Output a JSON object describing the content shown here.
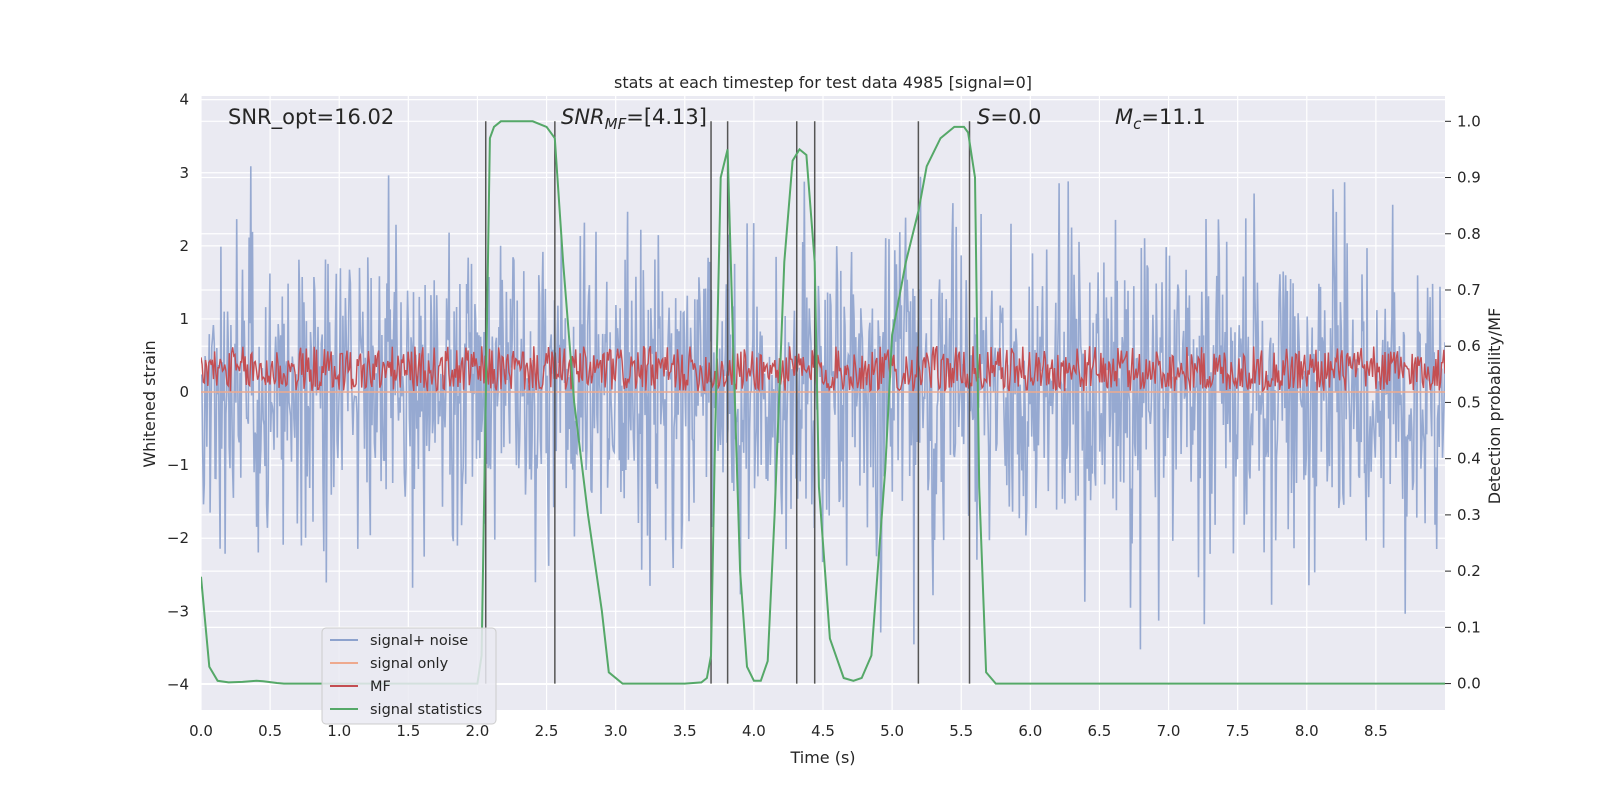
{
  "chart_data": {
    "type": "line",
    "title": "stats at each timestep for test data 4985 [signal=0]",
    "xlabel": "Time (s)",
    "ylabel_left": "Whitened strain",
    "ylabel_right": "Detection probability/MF",
    "xlim": [
      0.0,
      9.0
    ],
    "ylim_left": [
      -4.35,
      4.05
    ],
    "ylim_right": [
      -0.047,
      1.045
    ],
    "xticks": [
      0.0,
      0.5,
      1.0,
      1.5,
      2.0,
      2.5,
      3.0,
      3.5,
      4.0,
      4.5,
      5.0,
      5.5,
      6.0,
      6.5,
      7.0,
      7.5,
      8.0,
      8.5
    ],
    "xtick_labels": [
      "0.0",
      "0.5",
      "1.0",
      "1.5",
      "2.0",
      "2.5",
      "3.0",
      "3.5",
      "4.0",
      "4.5",
      "5.0",
      "5.5",
      "6.0",
      "6.5",
      "7.0",
      "7.5",
      "8.0",
      "8.5"
    ],
    "yticks_left": [
      -4,
      -3,
      -2,
      -1,
      0,
      1,
      2,
      3,
      4
    ],
    "ytick_labels_left": [
      "−4",
      "−3",
      "−2",
      "−1",
      "0",
      "1",
      "2",
      "3",
      "4"
    ],
    "yticks_right": [
      0.0,
      0.1,
      0.2,
      0.3,
      0.4,
      0.5,
      0.6,
      0.7,
      0.8,
      0.9,
      1.0
    ],
    "ytick_labels_right": [
      "0.0",
      "0.1",
      "0.2",
      "0.3",
      "0.4",
      "0.5",
      "0.6",
      "0.7",
      "0.8",
      "0.9",
      "1.0"
    ],
    "annotations": {
      "snr_opt": "SNR_opt=16.02",
      "snr_mf_main": "SNR",
      "snr_mf_sub": "MF",
      "snr_mf_value": "=[4.13]",
      "s_symbol": "S",
      "s_value": "=0.0",
      "mc_main": "M",
      "mc_sub": "c",
      "mc_value": "=11.1"
    },
    "legend": {
      "placement": "lower-left",
      "entries": [
        "signal+ noise",
        "signal only",
        "MF",
        "signal statistics"
      ]
    },
    "colors": {
      "noise": "#8da2cd",
      "signal_only": "#eea98e",
      "mf": "#c44e52",
      "stats": "#55a868",
      "vline": "#555555",
      "background": "#eaeaf2",
      "grid": "#ffffff"
    },
    "series_meta": {
      "noise": {
        "x_start": 0.0,
        "x_end": 9.0,
        "typical_range": [
          -1.7,
          1.7
        ],
        "extreme_range": [
          -4.0,
          3.7
        ]
      },
      "signal_only": {
        "value": 0.0
      },
      "mf": {
        "x_start": 0.0,
        "x_end": 9.0,
        "range_right": [
          0.52,
          0.6
        ]
      }
    },
    "vertical_lines_x": [
      2.06,
      2.56,
      3.69,
      3.81,
      4.31,
      4.44,
      5.19,
      5.56
    ],
    "vertical_lines_range_right": [
      0.0,
      1.0
    ],
    "signal_statistics": {
      "x": [
        0.0,
        0.06,
        0.12,
        0.2,
        0.3,
        0.4,
        0.45,
        0.55,
        0.6,
        1.0,
        1.5,
        2.0,
        2.03,
        2.06,
        2.09,
        2.12,
        2.17,
        2.25,
        2.4,
        2.5,
        2.56,
        2.62,
        2.7,
        2.8,
        2.9,
        2.95,
        3.05,
        3.3,
        3.5,
        3.62,
        3.66,
        3.69,
        3.72,
        3.76,
        3.81,
        3.85,
        3.9,
        3.95,
        4.0,
        4.05,
        4.1,
        4.15,
        4.22,
        4.28,
        4.33,
        4.38,
        4.44,
        4.47,
        4.55,
        4.65,
        4.72,
        4.78,
        4.85,
        4.95,
        5.0,
        5.1,
        5.19,
        5.25,
        5.35,
        5.45,
        5.52,
        5.55,
        5.6,
        5.63,
        5.68,
        5.75,
        6.0,
        7.0,
        8.0,
        9.0
      ],
      "y": [
        0.19,
        0.03,
        0.005,
        0.002,
        0.003,
        0.005,
        0.004,
        0.001,
        0.0,
        0.0,
        0.0,
        0.0,
        0.05,
        0.5,
        0.97,
        0.99,
        1.0,
        1.0,
        1.0,
        0.99,
        0.97,
        0.75,
        0.5,
        0.3,
        0.13,
        0.02,
        0.0,
        0.0,
        0.0,
        0.002,
        0.01,
        0.05,
        0.45,
        0.9,
        0.95,
        0.6,
        0.2,
        0.03,
        0.005,
        0.005,
        0.04,
        0.3,
        0.75,
        0.93,
        0.95,
        0.94,
        0.75,
        0.35,
        0.08,
        0.01,
        0.005,
        0.01,
        0.05,
        0.38,
        0.62,
        0.75,
        0.84,
        0.92,
        0.97,
        0.99,
        0.99,
        0.98,
        0.9,
        0.35,
        0.02,
        0.0,
        0.0,
        0.0,
        0.0,
        0.0
      ]
    }
  }
}
